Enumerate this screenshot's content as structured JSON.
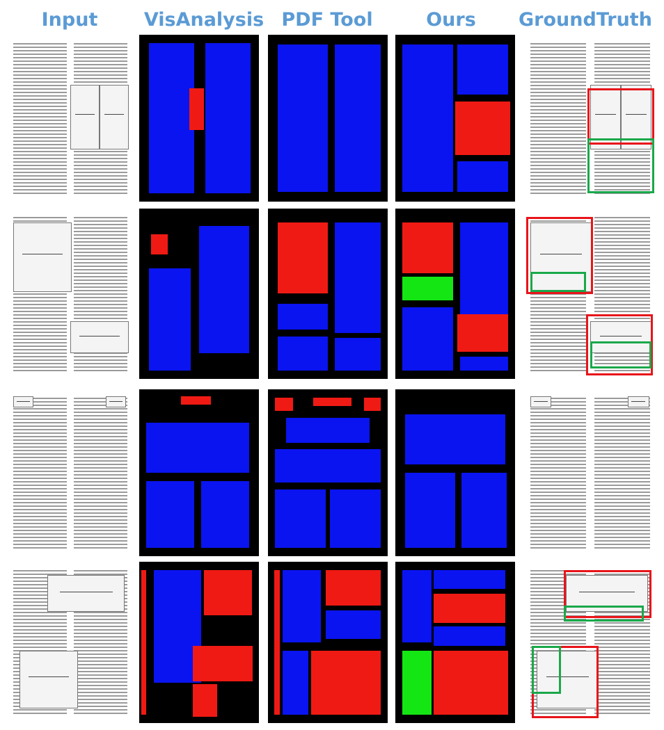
{
  "headers": [
    "Input",
    "VisAnalysis",
    "PDF Tool",
    "Ours",
    "GroundTruth"
  ],
  "colors": {
    "header": "#5b9bd5",
    "text_block": "#0a14f0",
    "figure_block": "#f01a14",
    "caption_block": "#14e614",
    "gt_figure_box": "#e8141a",
    "gt_caption_box": "#1aa84a"
  },
  "rows": [
    {
      "id": "row-1",
      "input_type": "two-column page with figure panels"
    },
    {
      "id": "row-2",
      "input_type": "two-column page with bar charts"
    },
    {
      "id": "row-3",
      "input_type": "journal title page"
    },
    {
      "id": "row-4",
      "input_type": "page with image figures"
    }
  ]
}
